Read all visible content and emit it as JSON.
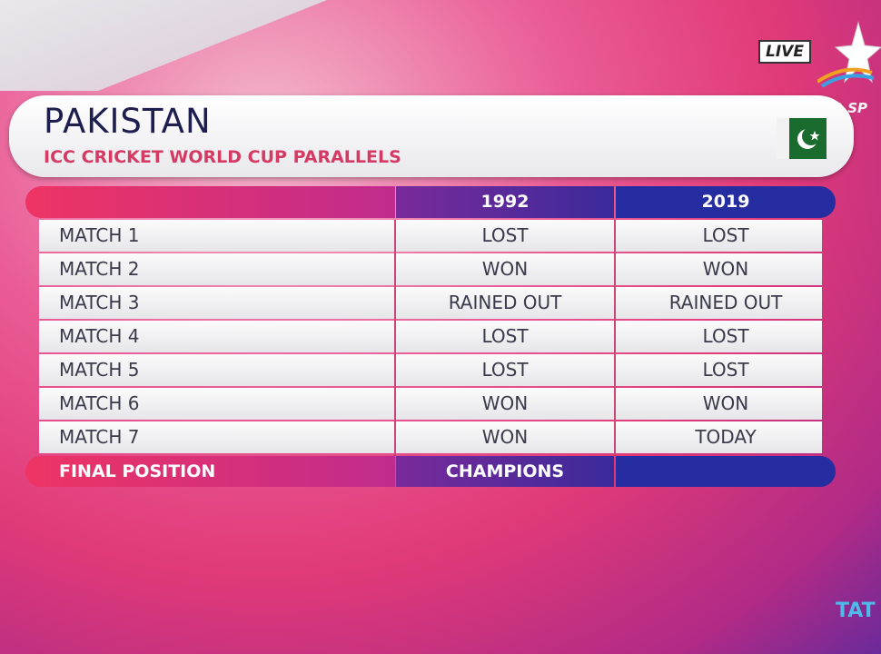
{
  "broadcast": {
    "live": "LIVE",
    "channel": "STAR SP",
    "sponsor": "TAT"
  },
  "header": {
    "title": "PAKISTAN",
    "subtitle": "ICC CRICKET WORLD CUP PARALLELS"
  },
  "table": {
    "columns": [
      "1992",
      "2019"
    ],
    "rows": [
      [
        "MATCH 1",
        "LOST",
        "LOST"
      ],
      [
        "MATCH 2",
        "WON",
        "WON"
      ],
      [
        "MATCH 3",
        "RAINED OUT",
        "RAINED OUT"
      ],
      [
        "MATCH 4",
        "LOST",
        "LOST"
      ],
      [
        "MATCH 5",
        "LOST",
        "LOST"
      ],
      [
        "MATCH 6",
        "WON",
        "WON"
      ],
      [
        "MATCH 7",
        "WON",
        "TODAY"
      ]
    ],
    "footer": [
      "FINAL POSITION",
      "CHAMPIONS"
    ]
  }
}
